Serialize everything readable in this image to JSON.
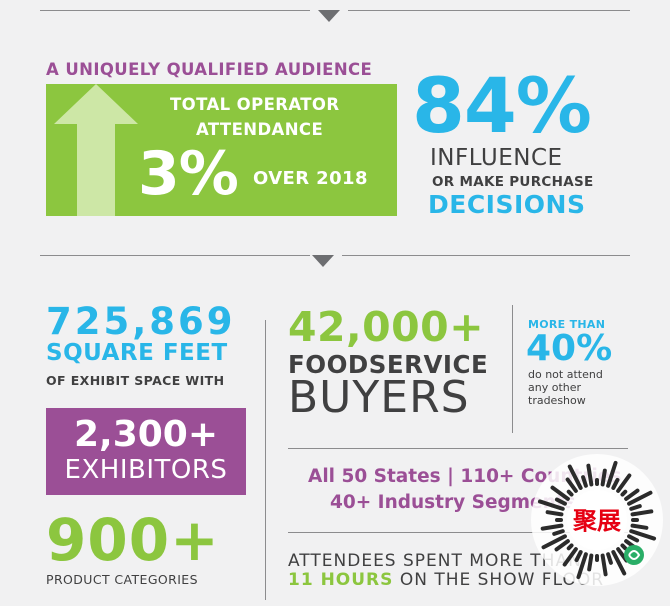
{
  "audience": {
    "heading": "A UNIQUELY QUALIFIED AUDIENCE",
    "operator": {
      "line1": "TOTAL OPERATOR",
      "line2": "ATTENDANCE",
      "percent": "3%",
      "comparison": "OVER 2018"
    },
    "influence": {
      "percent": "84%",
      "line1": "INFLUENCE",
      "line2": "OR MAKE PURCHASE",
      "line3": "DECISIONS"
    }
  },
  "exhibit": {
    "square_feet_value": "725,869",
    "square_feet_unit": "SQUARE FEET",
    "square_feet_caption": "OF EXHIBIT SPACE WITH",
    "exhibitors_value": "2,300+",
    "exhibitors_label": "EXHIBITORS",
    "categories_value": "900+",
    "categories_label": "PRODUCT CATEGORIES"
  },
  "buyers": {
    "value": "42,000+",
    "line1": "FOODSERVICE",
    "line2": "BUYERS",
    "more_than_label": "MORE THAN",
    "more_than_percent": "40%",
    "caption_line1": "do not attend",
    "caption_line2": "any other",
    "caption_line3": "tradeshow"
  },
  "reach": {
    "states_line": "All 50 States | 110+ Countries",
    "segments_line": "40+ Industry Segments"
  },
  "time": {
    "line1": "ATTENDEES SPENT MORE THAN",
    "hours": "11 HOURS",
    "line2_rest": "ON THE SHOW FLOOR"
  },
  "watermark": {
    "text": "聚展"
  },
  "colors": {
    "purple": "#9b4f96",
    "green": "#8cc63f",
    "blue": "#29b6e8",
    "dark": "#404041",
    "background": "#f1f1f2"
  }
}
